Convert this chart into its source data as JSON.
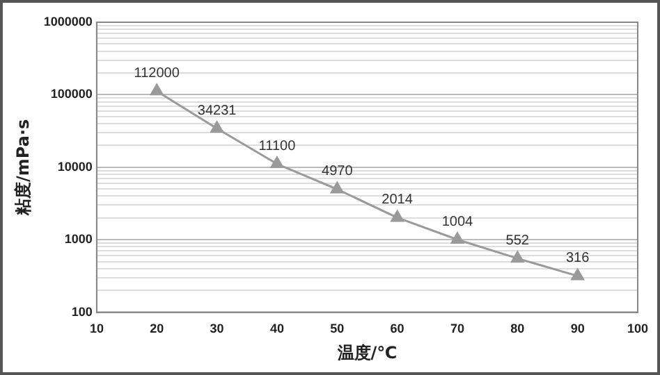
{
  "chart_data": {
    "type": "line",
    "xlabel": "温度/℃",
    "ylabel": "粘度/mPa·s",
    "x": [
      20,
      30,
      40,
      50,
      60,
      70,
      80,
      90
    ],
    "series": [
      {
        "color": "#9a9a9a",
        "values": [
          112000,
          34231,
          11100,
          4970,
          2014,
          1004,
          552,
          316
        ]
      }
    ],
    "xlim": [
      10,
      100
    ],
    "xticks": [
      10,
      20,
      30,
      40,
      50,
      60,
      70,
      80,
      90,
      100
    ],
    "ylim": [
      100,
      1000000
    ],
    "yticks": [
      100,
      {
        "value": 200,
        "label": null
      },
      {
        "value": 300,
        "label": null
      },
      {
        "value": 400,
        "label": null
      },
      {
        "value": 500,
        "label": null
      },
      {
        "value": 600,
        "label": null
      },
      {
        "value": 700,
        "label": null
      },
      {
        "value": 800,
        "label": null
      },
      {
        "value": 900,
        "label": null
      },
      1000,
      {
        "value": 2000,
        "label": null
      },
      {
        "value": 3000,
        "label": null
      },
      {
        "value": 4000,
        "label": null
      },
      {
        "value": 5000,
        "label": null
      },
      {
        "value": 6000,
        "label": null
      },
      {
        "value": 7000,
        "label": null
      },
      {
        "value": 8000,
        "label": null
      },
      {
        "value": 9000,
        "label": null
      },
      10000,
      {
        "value": 20000,
        "label": null
      },
      {
        "value": 30000,
        "label": null
      },
      {
        "value": 40000,
        "label": null
      },
      {
        "value": 50000,
        "label": null
      },
      {
        "value": 60000,
        "label": null
      },
      {
        "value": 70000,
        "label": null
      },
      {
        "value": 80000,
        "label": null
      },
      {
        "value": 90000,
        "label": null
      },
      100000,
      {
        "value": 200000,
        "label": null
      },
      {
        "value": 300000,
        "label": null
      },
      {
        "value": 400000,
        "label": null
      },
      {
        "value": 500000,
        "label": null
      },
      {
        "value": 600000,
        "label": null
      },
      {
        "value": 700000,
        "label": null
      },
      {
        "value": 800000,
        "label": null
      },
      {
        "value": 900000,
        "label": null
      },
      1000000
    ],
    "log": "y",
    "grid": "y",
    "marker": "triangle",
    "line_style": "solid",
    "data_labels": true,
    "legend": false
  }
}
